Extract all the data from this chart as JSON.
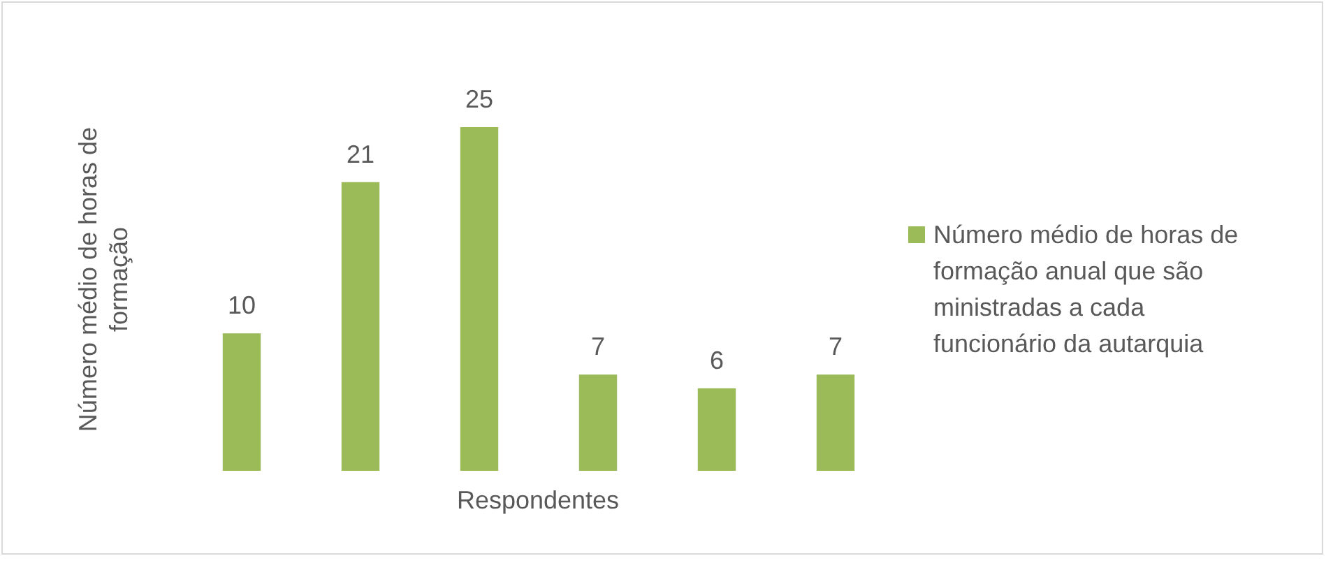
{
  "chart_data": {
    "type": "bar",
    "xlabel": "Respondentes",
    "ylabel": "Número médio de horas de formação",
    "categories": [
      null,
      null,
      null,
      null,
      null,
      null
    ],
    "series": [
      {
        "name": "Número médio de horas de formação anual que são ministradas a cada funcionário da autarquia",
        "color": "#9bbb59",
        "values": [
          10,
          21,
          25,
          7,
          6,
          7
        ]
      }
    ],
    "data_labels": true,
    "legend": "right"
  }
}
